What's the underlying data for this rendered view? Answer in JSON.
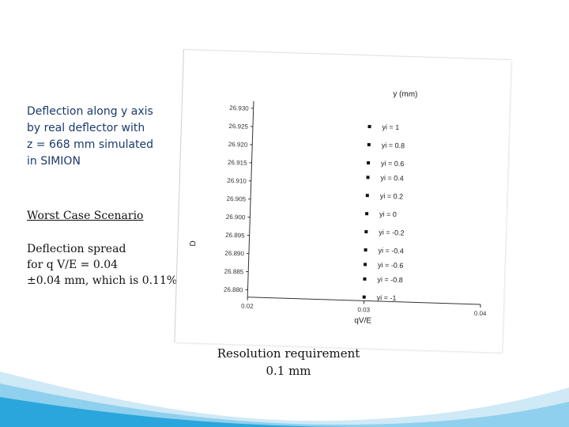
{
  "slide": {
    "title_lines": [
      "Deflection along y axis",
      "by real deflector with",
      " z = 668 mm simulated",
      "in SIMION"
    ],
    "worst_case": "Worst Case Scenario",
    "spread_lines": [
      "Deflection spread",
      "for q V/E = 0.04",
      "±0.04 mm, which is 0.11%"
    ],
    "resolution_lines": [
      "Resolution requirement",
      "0.1 mm"
    ]
  },
  "colors": {
    "title_text": "#1a3a6e",
    "wave_light": "#cfe9f6",
    "wave_mid": "#8fd0ee",
    "wave_dark": "#2aa6dc"
  },
  "chart_data": {
    "type": "scatter",
    "title": "y (mm)",
    "xlabel": "qV/E",
    "ylabel": "D",
    "x_ticks": [
      "0.02",
      "0.03",
      "0.04"
    ],
    "y_ticks": [
      "26.930",
      "26.925",
      "26.920",
      "26.915",
      "26.910",
      "26.905",
      "26.900",
      "26.895",
      "26.890",
      "26.885",
      "26.880"
    ],
    "xlim": [
      0.02,
      0.04
    ],
    "ylim": [
      26.878,
      26.932
    ],
    "series": [
      {
        "name": "yi = 1",
        "x": 0.03,
        "y": 26.926
      },
      {
        "name": "yi = 0.8",
        "x": 0.03,
        "y": 26.921
      },
      {
        "name": "yi = 0.6",
        "x": 0.03,
        "y": 26.916
      },
      {
        "name": "yi = 0.4",
        "x": 0.03,
        "y": 26.912
      },
      {
        "name": "yi = 0.2",
        "x": 0.03,
        "y": 26.907
      },
      {
        "name": "yi = 0",
        "x": 0.03,
        "y": 26.902
      },
      {
        "name": "yi = -0.2",
        "x": 0.03,
        "y": 26.897
      },
      {
        "name": "yi = -0.4",
        "x": 0.03,
        "y": 26.892
      },
      {
        "name": "yi = -0.6",
        "x": 0.03,
        "y": 26.888
      },
      {
        "name": "yi = -0.8",
        "x": 0.03,
        "y": 26.884
      },
      {
        "name": "yi = -1",
        "x": 0.03,
        "y": 26.879
      }
    ]
  }
}
